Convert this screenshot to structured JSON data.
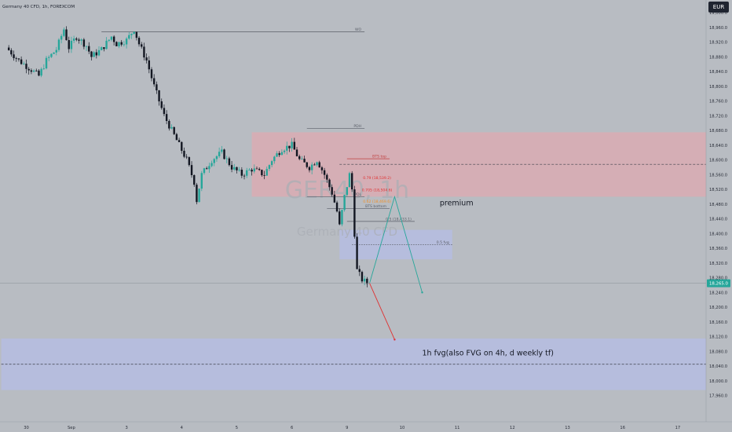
{
  "header": {
    "symbol_line": "Germany 40 CFD, 1h, FOREXCOM",
    "currency": "EUR"
  },
  "watermark": {
    "ticker": "GER40, 1h",
    "name": "Germany 40 CFD"
  },
  "colors": {
    "background": "#b8bcc2",
    "up": "#26a69a",
    "down": "#131722",
    "premium_zone": "#e5a6ad",
    "fvg_zone": "#b5bde6",
    "current_price_badge": "#26a69a",
    "red_text": "#e03030",
    "orange_text": "#f0902a",
    "projection_up": "#26a69a",
    "projection_down": "#e03030"
  },
  "chart_data": {
    "type": "candlestick",
    "y_axis": {
      "ylim": [
        17940,
        19032
      ],
      "ticks": [
        17960,
        18000,
        18040,
        18080,
        18120,
        18160,
        18200,
        18240,
        18280,
        18320,
        18360,
        18400,
        18440,
        18480,
        18520,
        18560,
        18600,
        18640,
        18680,
        18720,
        18760,
        18800,
        18840,
        18880,
        18920,
        18960,
        19000
      ],
      "tick_labels": [
        "17,960.0",
        "18,000.0",
        "18,040.0",
        "18,080.0",
        "18,120.0",
        "18,160.0",
        "18,200.0",
        "18,240.0",
        "18,280.0",
        "18,320.0",
        "18,360.0",
        "18,400.0",
        "18,440.0",
        "18,480.0",
        "18,520.0",
        "18,560.0",
        "18,600.0",
        "18,640.0",
        "18,680.0",
        "18,720.0",
        "18,760.0",
        "18,800.0",
        "18,840.0",
        "18,880.0",
        "18,920.0",
        "18,960.0",
        "19,000.0"
      ],
      "current_price": 18265,
      "current_price_label": "18,265.0"
    },
    "x_axis": {
      "ticks": [
        {
          "t": 0,
          "label": "30"
        },
        {
          "t": 18,
          "label": "Sep"
        },
        {
          "t": 40,
          "label": "3"
        },
        {
          "t": 62,
          "label": "4"
        },
        {
          "t": 84,
          "label": "5"
        },
        {
          "t": 106,
          "label": "6"
        },
        {
          "t": 128,
          "label": "9"
        },
        {
          "t": 150,
          "label": "10"
        },
        {
          "t": 172,
          "label": "11"
        },
        {
          "t": 194,
          "label": "12"
        },
        {
          "t": 216,
          "label": "13"
        },
        {
          "t": 238,
          "label": "16"
        },
        {
          "t": 260,
          "label": "17"
        }
      ]
    },
    "keyframes": [
      {
        "t": -8,
        "p": 18905
      },
      {
        "t": -3,
        "p": 18870
      },
      {
        "t": 2,
        "p": 18845
      },
      {
        "t": 5,
        "p": 18828
      },
      {
        "t": 8,
        "p": 18870
      },
      {
        "t": 12,
        "p": 18900
      },
      {
        "t": 15,
        "p": 18955
      },
      {
        "t": 17,
        "p": 18905
      },
      {
        "t": 20,
        "p": 18935
      },
      {
        "t": 24,
        "p": 18910
      },
      {
        "t": 26,
        "p": 18880
      },
      {
        "t": 30,
        "p": 18900
      },
      {
        "t": 34,
        "p": 18935
      },
      {
        "t": 36,
        "p": 18915
      },
      {
        "t": 40,
        "p": 18925
      },
      {
        "t": 43,
        "p": 18955
      },
      {
        "t": 45,
        "p": 18915
      },
      {
        "t": 48,
        "p": 18870
      },
      {
        "t": 51,
        "p": 18800
      },
      {
        "t": 55,
        "p": 18720
      },
      {
        "t": 58,
        "p": 18680
      },
      {
        "t": 61,
        "p": 18640
      },
      {
        "t": 64,
        "p": 18600
      },
      {
        "t": 67,
        "p": 18540
      },
      {
        "t": 68,
        "p": 18490
      },
      {
        "t": 70,
        "p": 18560
      },
      {
        "t": 74,
        "p": 18600
      },
      {
        "t": 78,
        "p": 18620
      },
      {
        "t": 82,
        "p": 18580
      },
      {
        "t": 86,
        "p": 18560
      },
      {
        "t": 90,
        "p": 18575
      },
      {
        "t": 95,
        "p": 18560
      },
      {
        "t": 98,
        "p": 18600
      },
      {
        "t": 102,
        "p": 18630
      },
      {
        "t": 106,
        "p": 18640
      },
      {
        "t": 109,
        "p": 18600
      },
      {
        "t": 113,
        "p": 18580
      },
      {
        "t": 116,
        "p": 18600
      },
      {
        "t": 119,
        "p": 18560
      },
      {
        "t": 122,
        "p": 18510
      },
      {
        "t": 124,
        "p": 18460
      },
      {
        "t": 125,
        "p": 18420
      },
      {
        "t": 127,
        "p": 18500
      },
      {
        "t": 129,
        "p": 18560
      },
      {
        "t": 130,
        "p": 18520
      },
      {
        "t": 131,
        "p": 18400
      },
      {
        "t": 132,
        "p": 18300
      },
      {
        "t": 134,
        "p": 18275
      },
      {
        "t": 136,
        "p": 18265
      }
    ],
    "zones": [
      {
        "name": "premium-zone",
        "t0": 90,
        "t1": 280,
        "p0": 18500,
        "p1": 18675
      },
      {
        "name": "fvg-zone-1h",
        "t0": -10,
        "t1": 280,
        "p0": 17975,
        "p1": 18115
      },
      {
        "name": "fvg-zone-small",
        "t0": 125,
        "t1": 170,
        "p0": 18330,
        "p1": 18410
      }
    ],
    "levels": [
      {
        "name": "wo-line",
        "p": 18948,
        "t0": 30,
        "t1": 135,
        "label": "WO",
        "style": "solid",
        "color": "#5a5e68"
      },
      {
        "name": "pdh-line",
        "p": 18685,
        "t0": 112,
        "t1": 135,
        "label": "PDH",
        "style": "solid",
        "color": "#5a5e68"
      },
      {
        "name": "bts-top-line",
        "p": 18603,
        "t0": 128,
        "t1": 145,
        "label": "BTS top",
        "style": "solid",
        "color": "#c04040"
      },
      {
        "name": "dashed-level-top",
        "p": 18588,
        "t0": 125,
        "t1": 280,
        "label": "",
        "style": "dashed",
        "color": "#3a3e48"
      },
      {
        "name": "pdl-line",
        "p": 18500,
        "t0": 112,
        "t1": 135,
        "label": "PDL",
        "style": "solid",
        "color": "#5a5e68"
      },
      {
        "name": "bts-bottom-line",
        "p": 18468,
        "t0": 120,
        "t1": 145,
        "label": "BTS bottom",
        "style": "solid",
        "color": "#5a5e68"
      },
      {
        "name": "fib-05-line",
        "p": 18433,
        "t0": 128,
        "t1": 155,
        "label": "0.5 (18,433.1)",
        "style": "solid",
        "color": "#5a5e68"
      },
      {
        "name": "fvg-05-line",
        "p": 18370,
        "t0": 130,
        "t1": 170,
        "label": "0.5 fvg",
        "style": "dotted",
        "color": "#5a5e68"
      },
      {
        "name": "dashed-level-bottom",
        "p": 18045,
        "t0": -10,
        "t1": 280,
        "label": "",
        "style": "dashed",
        "color": "#3a3e48"
      }
    ],
    "fib_labels": [
      {
        "t": 140,
        "p": 18548,
        "text": "0.79 (18,539.2)",
        "color": "#e03030"
      },
      {
        "t": 140,
        "p": 18515,
        "text": "0.705 (18,504.6)",
        "color": "#e03030"
      },
      {
        "t": 140,
        "p": 18484,
        "text": "0.62 (18,469.6)",
        "color": "#f0902a"
      }
    ],
    "projections": [
      {
        "name": "projection-up-path",
        "color": "#26a69a",
        "points": [
          [
            137,
            18265
          ],
          [
            147,
            18500
          ],
          [
            158,
            18240
          ]
        ]
      },
      {
        "name": "projection-down-path",
        "color": "#e03030",
        "points": [
          [
            137,
            18265
          ],
          [
            147,
            18112
          ]
        ]
      }
    ],
    "annotations": [
      {
        "name": "premium-label",
        "text": "premium",
        "t": 165,
        "p": 18476
      },
      {
        "name": "fvg-label",
        "text": "1h fvg(also FVG on 4h, d weekly tf)",
        "t": 158,
        "p": 18069
      }
    ]
  }
}
